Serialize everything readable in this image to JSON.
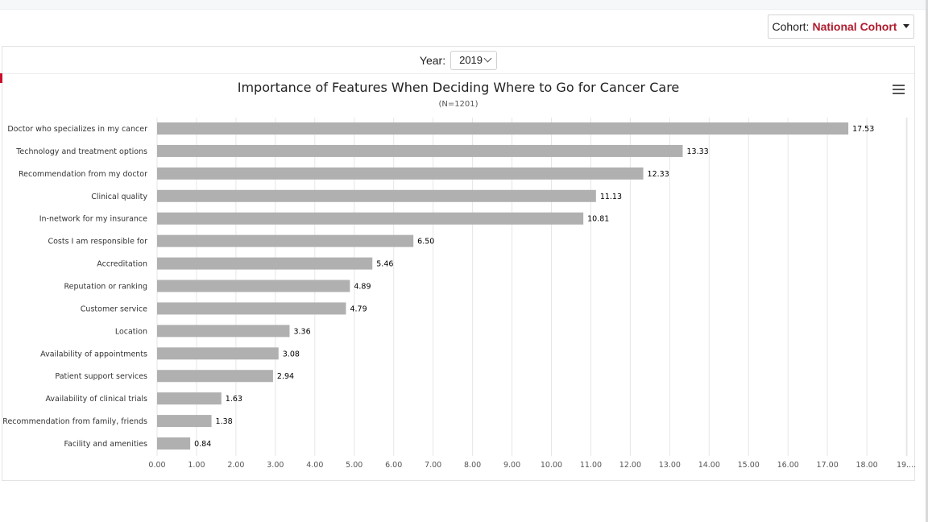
{
  "cohort": {
    "label": "Cohort:",
    "value": "National Cohort"
  },
  "year": {
    "label": "Year:",
    "selected": "2019"
  },
  "chart_data": {
    "type": "bar",
    "orientation": "horizontal",
    "title": "Importance of Features When Deciding Where to Go for Cancer Care",
    "subtitle": "(N=1201)",
    "categories": [
      "Doctor who specializes in my cancer",
      "Technology and treatment options",
      "Recommendation from my doctor",
      "Clinical quality",
      "In-network for my insurance",
      "Costs I am responsible for",
      "Accreditation",
      "Reputation or ranking",
      "Customer service",
      "Location",
      "Availability of appointments",
      "Patient support services",
      "Availability of clinical trials",
      "Recommendation from family, friends",
      "Facility and amenities"
    ],
    "values": [
      17.53,
      13.33,
      12.33,
      11.13,
      10.81,
      6.5,
      5.46,
      4.89,
      4.79,
      3.36,
      3.08,
      2.94,
      1.63,
      1.38,
      0.84
    ],
    "value_labels": [
      "17.53",
      "13.33",
      "12.33",
      "11.13",
      "10.81",
      "6.50",
      "5.46",
      "4.89",
      "4.79",
      "3.36",
      "3.08",
      "2.94",
      "1.63",
      "1.38",
      "0.84"
    ],
    "tick_labels": [
      "0.00",
      "1.00",
      "2.00",
      "3.00",
      "4.00",
      "5.00",
      "6.00",
      "7.00",
      "8.00",
      "9.00",
      "10.00",
      "11.00",
      "12.00",
      "13.00",
      "14.00",
      "15.00",
      "16.00",
      "17.00",
      "18.00",
      "19...."
    ],
    "xlim": [
      0,
      19
    ],
    "grid": true,
    "bar_color": "#b0b0b0"
  }
}
